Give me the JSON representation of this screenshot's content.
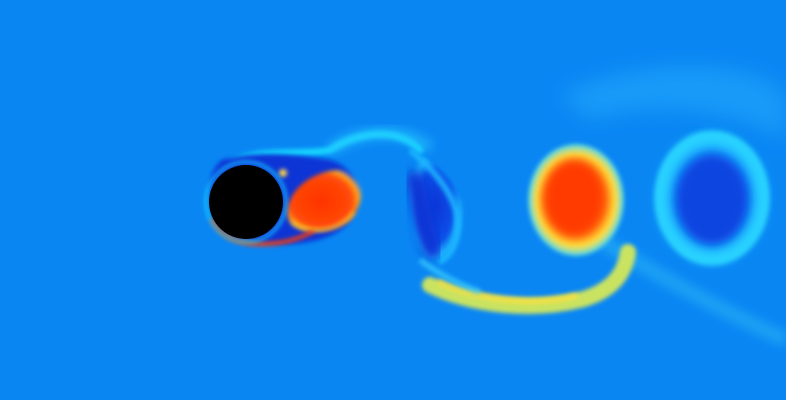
{
  "view": {
    "type": "cfd-vorticity-field",
    "colormap": "jet",
    "colors": {
      "background": "#0a86f3",
      "obstacle": "#000000",
      "negative_strong": "#0a35d6",
      "negative_mid": "#1259ee",
      "shear_highlight": "#19d6ff",
      "positive_strong": "#ff3a00",
      "positive_mid": "#ff6a18",
      "positive_weak": "#ffe13a",
      "positive_trail": "#d4e85a",
      "cyan_edge": "#27c8ff"
    },
    "features": [
      "circular-cylinder",
      "upper-shear-layer",
      "lower-shear-layer",
      "attached-positive-vortex",
      "negative-vortex-near",
      "positive-vortex-mid",
      "negative-vortex-far",
      "yellow-filament"
    ]
  }
}
